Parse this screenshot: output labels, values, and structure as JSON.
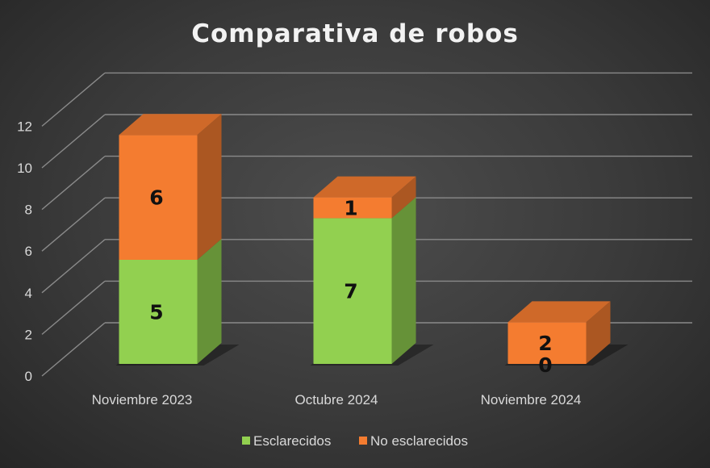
{
  "chart_data": {
    "type": "bar",
    "stacked": true,
    "three_d": true,
    "title": "Comparativa de robos",
    "categories": [
      "Noviembre 2023",
      "Octubre 2024",
      "Noviembre 2024"
    ],
    "series": [
      {
        "name": "Esclarecidos",
        "values": [
          5,
          7,
          0
        ],
        "color": "#92d050"
      },
      {
        "name": "No esclarecidos",
        "values": [
          6,
          1,
          2
        ],
        "color": "#f47c30"
      }
    ],
    "y_ticks": [
      "0",
      "2",
      "4",
      "6",
      "8",
      "10",
      "12"
    ],
    "ylim": [
      0,
      12
    ],
    "grid": true,
    "legend_position": "bottom",
    "data_labels": true
  }
}
